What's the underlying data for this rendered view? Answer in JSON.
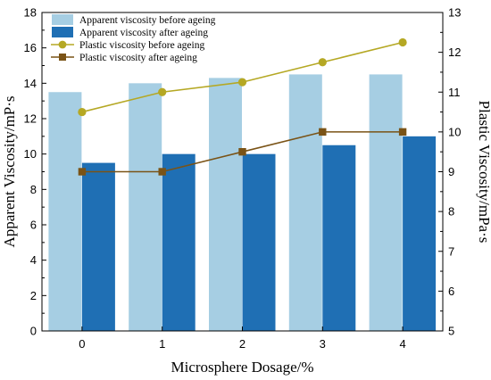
{
  "chart_data": {
    "type": "bar",
    "categories": [
      "0",
      "1",
      "2",
      "3",
      "4"
    ],
    "xlabel": "Microsphere Dosage/%",
    "ylabel_left": "Apparent Viscosity/mP·s",
    "ylabel_right": "Plastic Viscosity/mPa·s",
    "ylim_left": [
      0,
      18
    ],
    "yticks_left": [
      "0",
      "2",
      "4",
      "6",
      "8",
      "10",
      "12",
      "14",
      "16",
      "18"
    ],
    "ylim_right": [
      5,
      13
    ],
    "yticks_right": [
      "5",
      "6",
      "7",
      "8",
      "9",
      "10",
      "11",
      "12",
      "13"
    ],
    "grid": false,
    "legend_position": "top-left",
    "series": [
      {
        "name": "Apparent viscosity before ageing",
        "kind": "bar",
        "axis": "left",
        "color": "#a6cee3",
        "values": [
          13.5,
          14.0,
          14.3,
          14.5,
          14.5
        ]
      },
      {
        "name": "Apparent viscosity after ageing",
        "kind": "bar",
        "axis": "left",
        "color": "#1f6fb4",
        "values": [
          9.5,
          10.0,
          10.0,
          10.5,
          11.0
        ]
      },
      {
        "name": "Plastic viscosity before ageing",
        "kind": "line",
        "marker": "circle",
        "axis": "right",
        "color": "#b5a824",
        "values": [
          10.5,
          11.0,
          11.25,
          11.75,
          12.25
        ]
      },
      {
        "name": "Plastic viscosity after ageing",
        "kind": "line",
        "marker": "square",
        "axis": "right",
        "color": "#7a5316",
        "values": [
          9.0,
          9.0,
          9.5,
          10.0,
          10.0
        ]
      }
    ]
  }
}
